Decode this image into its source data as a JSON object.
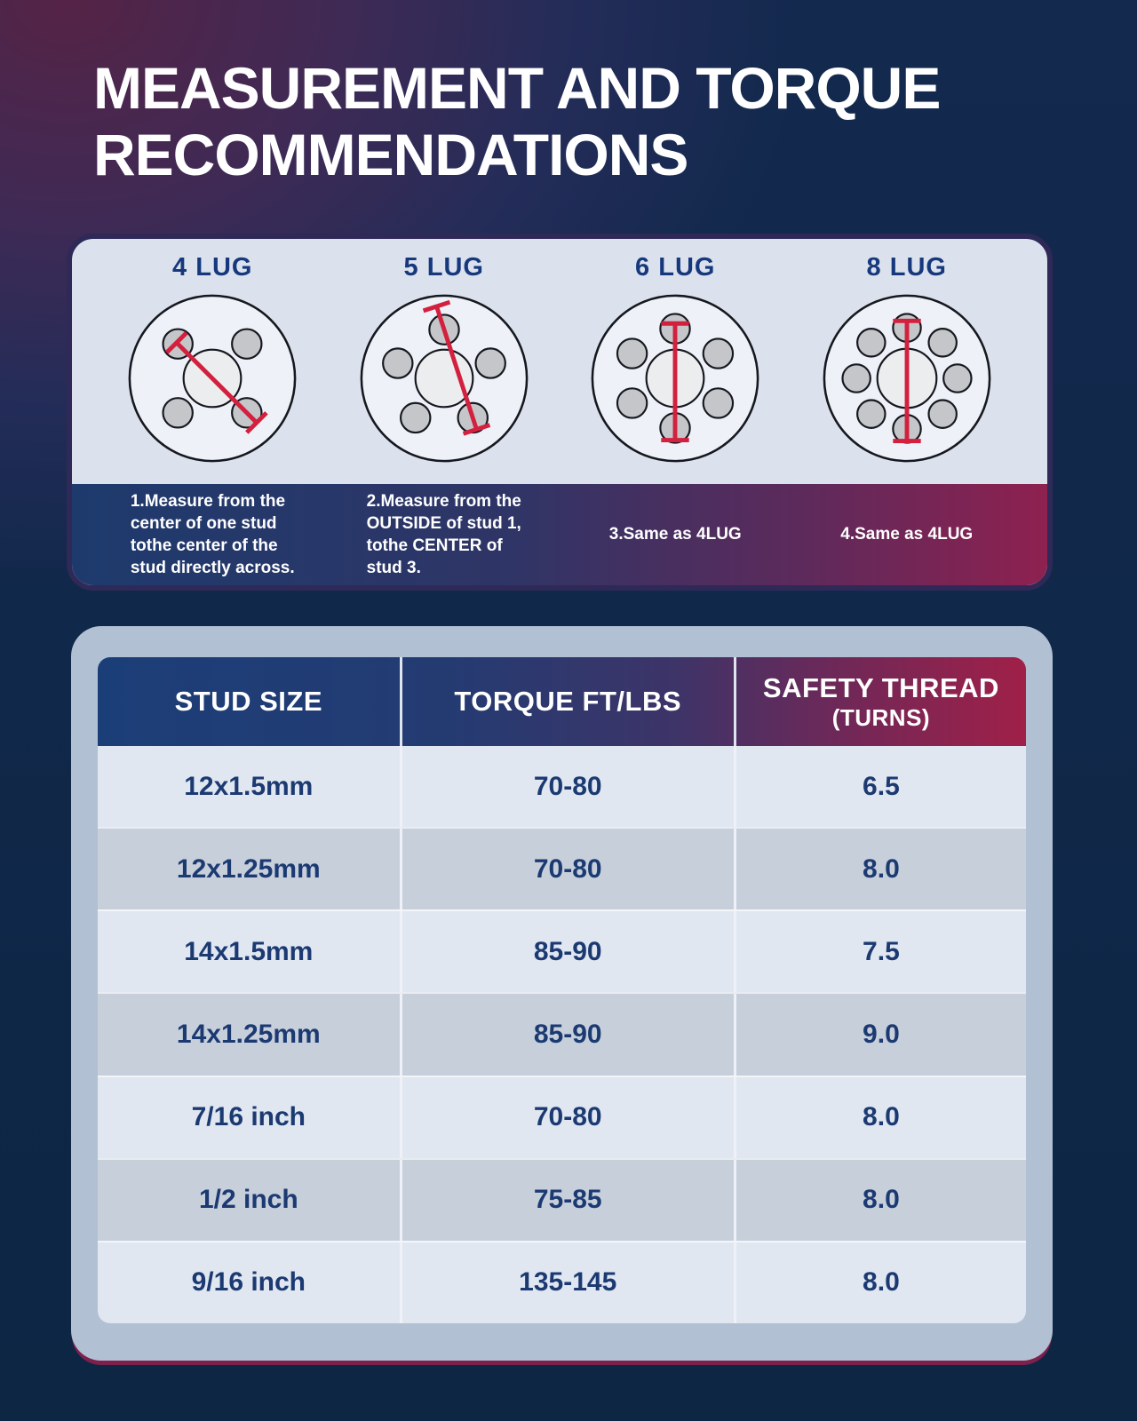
{
  "page": {
    "title_line1": "MEASUREMENT AND TORQUE",
    "title_line2": "RECOMMENDATIONS"
  },
  "lug_panel": {
    "lugs": [
      {
        "label": "4 LUG",
        "studs": 4,
        "note": "1.Measure from the\ncenter of one stud\ntothe center of the\nstud directly across."
      },
      {
        "label": "5 LUG",
        "studs": 5,
        "note": "2.Measure from the\nOUTSIDE of stud 1,\ntothe CENTER of\nstud 3."
      },
      {
        "label": "6 LUG",
        "studs": 6,
        "note": "3.Same as 4LUG"
      },
      {
        "label": "8 LUG",
        "studs": 8,
        "note": "4.Same as 4LUG"
      }
    ]
  },
  "table": {
    "headers": [
      {
        "text": "STUD SIZE"
      },
      {
        "text": "TORQUE FT/LBS"
      },
      {
        "text": "SAFETY THREAD",
        "sub": "(TURNS)"
      }
    ],
    "rows": [
      {
        "stud_size": "12x1.5mm",
        "torque_ft_lbs": "70-80",
        "safety_thread_turns": "6.5"
      },
      {
        "stud_size": "12x1.25mm",
        "torque_ft_lbs": "70-80",
        "safety_thread_turns": "8.0"
      },
      {
        "stud_size": "14x1.5mm",
        "torque_ft_lbs": "85-90",
        "safety_thread_turns": "7.5"
      },
      {
        "stud_size": "14x1.25mm",
        "torque_ft_lbs": "85-90",
        "safety_thread_turns": "9.0"
      },
      {
        "stud_size": "7/16 inch",
        "torque_ft_lbs": "70-80",
        "safety_thread_turns": "8.0"
      },
      {
        "stud_size": "1/2 inch",
        "torque_ft_lbs": "75-85",
        "safety_thread_turns": "8.0"
      },
      {
        "stud_size": "9/16 inch",
        "torque_ft_lbs": "135-145",
        "safety_thread_turns": "8.0"
      }
    ]
  },
  "colors": {
    "accent_red": "#d2203e",
    "header_navy": "#1c3e78",
    "header_maroon": "#9c2048",
    "lug_label_navy": "#16387d",
    "cell_text_navy": "#1c3a72",
    "wheel_face": "#eef1f7",
    "stud_gray": "#c4c6c9"
  }
}
